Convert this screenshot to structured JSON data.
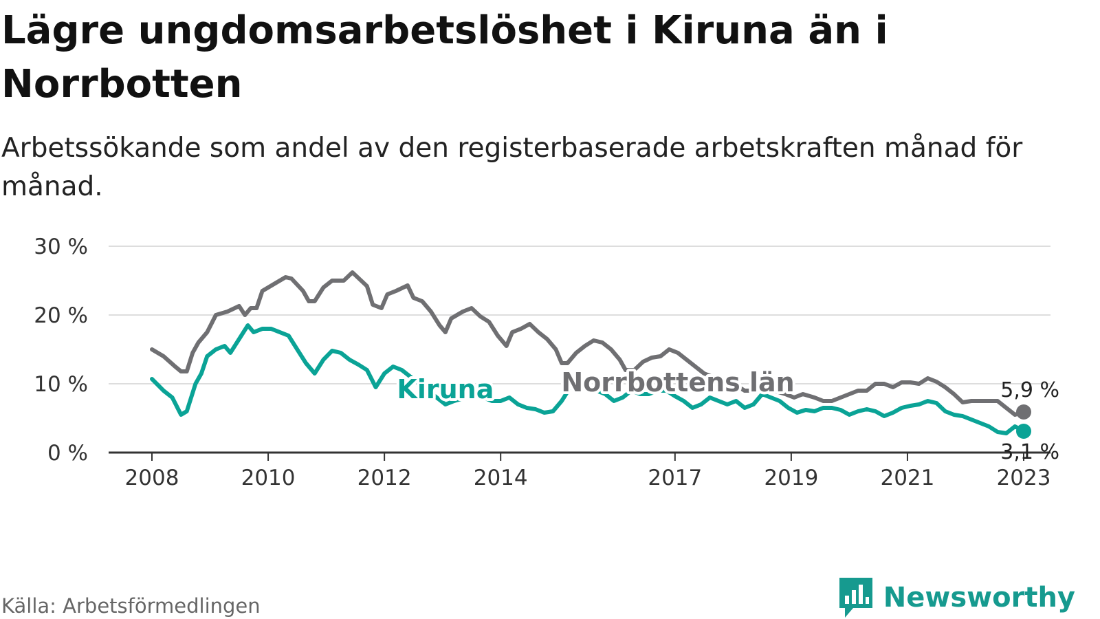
{
  "colors": {
    "kiruna": "#0aa396",
    "norrbotten": "#6f6f72",
    "grid": "#dddddd",
    "axis": "#333333",
    "brand": "#169a8f"
  },
  "header": {
    "title": "Lägre ungdomsarbetslöshet i Kiruna än i Norrbotten",
    "subtitle": "Arbetssökande som andel av den registerbaserade arbetskraften månad för månad."
  },
  "footer": {
    "source": "Källa: Arbetsförmedlingen",
    "brand_name": "Newsworthy",
    "brand_icon": "bar-chart-speech-bubble-icon"
  },
  "chart_data": {
    "type": "line",
    "title": "Lägre ungdomsarbetslöshet i Kiruna än i Norrbotten",
    "subtitle": "Arbetssökande som andel av den registerbaserade arbetskraften månad för månad.",
    "xlabel": "",
    "ylabel": "",
    "xlim": [
      2008.0,
      2023.0
    ],
    "ylim": [
      0,
      30
    ],
    "yticks": [
      0,
      10,
      20,
      30
    ],
    "ytick_labels": [
      "0 %",
      "10 %",
      "20 %",
      "30 %"
    ],
    "xticks": [
      {
        "value": 2008.0,
        "label": "2008"
      },
      {
        "value": 2010.0,
        "label": "2010"
      },
      {
        "value": 2012.0,
        "label": "2012"
      },
      {
        "value": 2014.0,
        "label": "2014"
      },
      {
        "value": 2017.0,
        "label": "2017"
      },
      {
        "value": 2019.0,
        "label": "2019"
      },
      {
        "value": 2021.0,
        "label": "2021"
      },
      {
        "value": 2023.0,
        "label": "2023"
      }
    ],
    "grid": true,
    "series": [
      {
        "name": "Norrbottens län",
        "label": "Norrbottens län",
        "color": "#6f6f72",
        "end_label": "5,9 %",
        "points": [
          [
            2008.0,
            15.0
          ],
          [
            2008.2,
            14.0
          ],
          [
            2008.4,
            12.5
          ],
          [
            2008.5,
            11.8
          ],
          [
            2008.6,
            11.8
          ],
          [
            2008.7,
            14.5
          ],
          [
            2008.8,
            16.0
          ],
          [
            2008.95,
            17.5
          ],
          [
            2009.1,
            20.0
          ],
          [
            2009.3,
            20.5
          ],
          [
            2009.5,
            21.3
          ],
          [
            2009.6,
            20.0
          ],
          [
            2009.7,
            21.0
          ],
          [
            2009.8,
            21.0
          ],
          [
            2009.9,
            23.5
          ],
          [
            2010.1,
            24.5
          ],
          [
            2010.3,
            25.5
          ],
          [
            2010.4,
            25.3
          ],
          [
            2010.6,
            23.5
          ],
          [
            2010.7,
            22.0
          ],
          [
            2010.8,
            22.0
          ],
          [
            2010.95,
            24.0
          ],
          [
            2011.1,
            25.0
          ],
          [
            2011.3,
            25.0
          ],
          [
            2011.45,
            26.2
          ],
          [
            2011.6,
            25.0
          ],
          [
            2011.7,
            24.2
          ],
          [
            2011.8,
            21.5
          ],
          [
            2011.95,
            21.0
          ],
          [
            2012.05,
            23.0
          ],
          [
            2012.2,
            23.5
          ],
          [
            2012.4,
            24.3
          ],
          [
            2012.5,
            22.5
          ],
          [
            2012.65,
            22.0
          ],
          [
            2012.8,
            20.5
          ],
          [
            2012.95,
            18.5
          ],
          [
            2013.05,
            17.5
          ],
          [
            2013.15,
            19.5
          ],
          [
            2013.35,
            20.5
          ],
          [
            2013.5,
            21.0
          ],
          [
            2013.65,
            19.8
          ],
          [
            2013.8,
            19.0
          ],
          [
            2013.95,
            17.0
          ],
          [
            2014.1,
            15.5
          ],
          [
            2014.2,
            17.5
          ],
          [
            2014.35,
            18.0
          ],
          [
            2014.5,
            18.7
          ],
          [
            2014.65,
            17.5
          ],
          [
            2014.8,
            16.5
          ],
          [
            2014.95,
            15.0
          ],
          [
            2015.05,
            13.0
          ],
          [
            2015.15,
            13.0
          ],
          [
            2015.3,
            14.5
          ],
          [
            2015.45,
            15.5
          ],
          [
            2015.6,
            16.3
          ],
          [
            2015.75,
            16.0
          ],
          [
            2015.9,
            15.0
          ],
          [
            2016.05,
            13.5
          ],
          [
            2016.15,
            12.0
          ],
          [
            2016.3,
            12.0
          ],
          [
            2016.45,
            13.2
          ],
          [
            2016.6,
            13.8
          ],
          [
            2016.75,
            14.0
          ],
          [
            2016.9,
            15.0
          ],
          [
            2017.05,
            14.5
          ],
          [
            2017.2,
            13.5
          ],
          [
            2017.35,
            12.5
          ],
          [
            2017.5,
            11.5
          ],
          [
            2017.65,
            11.0
          ],
          [
            2017.8,
            10.5
          ],
          [
            2018.0,
            10.0
          ],
          [
            2018.2,
            9.0
          ],
          [
            2018.35,
            9.0
          ],
          [
            2018.5,
            9.5
          ],
          [
            2018.7,
            9.0
          ],
          [
            2018.9,
            8.5
          ],
          [
            2019.05,
            8.0
          ],
          [
            2019.2,
            8.5
          ],
          [
            2019.4,
            8.0
          ],
          [
            2019.55,
            7.5
          ],
          [
            2019.7,
            7.5
          ],
          [
            2019.85,
            8.0
          ],
          [
            2020.0,
            8.5
          ],
          [
            2020.15,
            9.0
          ],
          [
            2020.3,
            9.0
          ],
          [
            2020.45,
            10.0
          ],
          [
            2020.6,
            10.0
          ],
          [
            2020.75,
            9.5
          ],
          [
            2020.9,
            10.2
          ],
          [
            2021.05,
            10.2
          ],
          [
            2021.2,
            10.0
          ],
          [
            2021.35,
            10.8
          ],
          [
            2021.5,
            10.3
          ],
          [
            2021.65,
            9.5
          ],
          [
            2021.8,
            8.5
          ],
          [
            2021.95,
            7.3
          ],
          [
            2022.1,
            7.5
          ],
          [
            2022.25,
            7.5
          ],
          [
            2022.4,
            7.5
          ],
          [
            2022.55,
            7.5
          ],
          [
            2022.7,
            6.5
          ],
          [
            2022.85,
            5.5
          ],
          [
            2023.0,
            5.9
          ]
        ]
      },
      {
        "name": "Kiruna",
        "label": "Kiruna",
        "color": "#0aa396",
        "end_label": "3,1 %",
        "points": [
          [
            2008.0,
            10.7
          ],
          [
            2008.2,
            9.0
          ],
          [
            2008.35,
            8.0
          ],
          [
            2008.5,
            5.5
          ],
          [
            2008.6,
            6.0
          ],
          [
            2008.75,
            10.0
          ],
          [
            2008.85,
            11.5
          ],
          [
            2008.95,
            14.0
          ],
          [
            2009.1,
            15.0
          ],
          [
            2009.25,
            15.5
          ],
          [
            2009.35,
            14.5
          ],
          [
            2009.5,
            16.5
          ],
          [
            2009.65,
            18.5
          ],
          [
            2009.75,
            17.5
          ],
          [
            2009.9,
            18.0
          ],
          [
            2010.05,
            18.0
          ],
          [
            2010.2,
            17.5
          ],
          [
            2010.35,
            17.0
          ],
          [
            2010.5,
            15.0
          ],
          [
            2010.65,
            13.0
          ],
          [
            2010.8,
            11.5
          ],
          [
            2010.95,
            13.5
          ],
          [
            2011.1,
            14.8
          ],
          [
            2011.25,
            14.5
          ],
          [
            2011.4,
            13.5
          ],
          [
            2011.55,
            12.8
          ],
          [
            2011.7,
            12.0
          ],
          [
            2011.85,
            9.5
          ],
          [
            2012.0,
            11.5
          ],
          [
            2012.15,
            12.5
          ],
          [
            2012.3,
            12.0
          ],
          [
            2012.45,
            11.0
          ],
          [
            2012.6,
            10.0
          ],
          [
            2012.75,
            9.0
          ],
          [
            2012.9,
            8.0
          ],
          [
            2013.05,
            7.0
          ],
          [
            2013.2,
            7.5
          ],
          [
            2013.4,
            8.0
          ],
          [
            2013.55,
            8.5
          ],
          [
            2013.7,
            8.0
          ],
          [
            2013.85,
            7.5
          ],
          [
            2014.0,
            7.5
          ],
          [
            2014.15,
            8.0
          ],
          [
            2014.3,
            7.0
          ],
          [
            2014.45,
            6.5
          ],
          [
            2014.6,
            6.3
          ],
          [
            2014.75,
            5.8
          ],
          [
            2014.9,
            6.0
          ],
          [
            2015.05,
            7.5
          ],
          [
            2015.2,
            9.5
          ],
          [
            2015.35,
            9.8
          ],
          [
            2015.5,
            9.5
          ],
          [
            2015.65,
            9.0
          ],
          [
            2015.8,
            8.5
          ],
          [
            2015.95,
            7.5
          ],
          [
            2016.1,
            8.0
          ],
          [
            2016.25,
            9.0
          ],
          [
            2016.4,
            8.5
          ],
          [
            2016.55,
            8.5
          ],
          [
            2016.7,
            9.0
          ],
          [
            2016.85,
            9.0
          ],
          [
            2017.0,
            8.2
          ],
          [
            2017.15,
            7.5
          ],
          [
            2017.3,
            6.5
          ],
          [
            2017.45,
            7.0
          ],
          [
            2017.6,
            8.0
          ],
          [
            2017.75,
            7.5
          ],
          [
            2017.9,
            7.0
          ],
          [
            2018.05,
            7.5
          ],
          [
            2018.2,
            6.5
          ],
          [
            2018.35,
            7.0
          ],
          [
            2018.5,
            8.5
          ],
          [
            2018.65,
            8.0
          ],
          [
            2018.8,
            7.5
          ],
          [
            2018.95,
            6.5
          ],
          [
            2019.1,
            5.8
          ],
          [
            2019.25,
            6.2
          ],
          [
            2019.4,
            6.0
          ],
          [
            2019.55,
            6.5
          ],
          [
            2019.7,
            6.5
          ],
          [
            2019.85,
            6.2
          ],
          [
            2020.0,
            5.5
          ],
          [
            2020.15,
            6.0
          ],
          [
            2020.3,
            6.3
          ],
          [
            2020.45,
            6.0
          ],
          [
            2020.6,
            5.3
          ],
          [
            2020.75,
            5.8
          ],
          [
            2020.9,
            6.5
          ],
          [
            2021.05,
            6.8
          ],
          [
            2021.2,
            7.0
          ],
          [
            2021.35,
            7.5
          ],
          [
            2021.5,
            7.2
          ],
          [
            2021.65,
            6.0
          ],
          [
            2021.8,
            5.5
          ],
          [
            2021.95,
            5.3
          ],
          [
            2022.1,
            4.8
          ],
          [
            2022.25,
            4.3
          ],
          [
            2022.4,
            3.8
          ],
          [
            2022.55,
            3.0
          ],
          [
            2022.7,
            2.8
          ],
          [
            2022.85,
            3.8
          ],
          [
            2023.0,
            3.1
          ]
        ]
      }
    ]
  }
}
